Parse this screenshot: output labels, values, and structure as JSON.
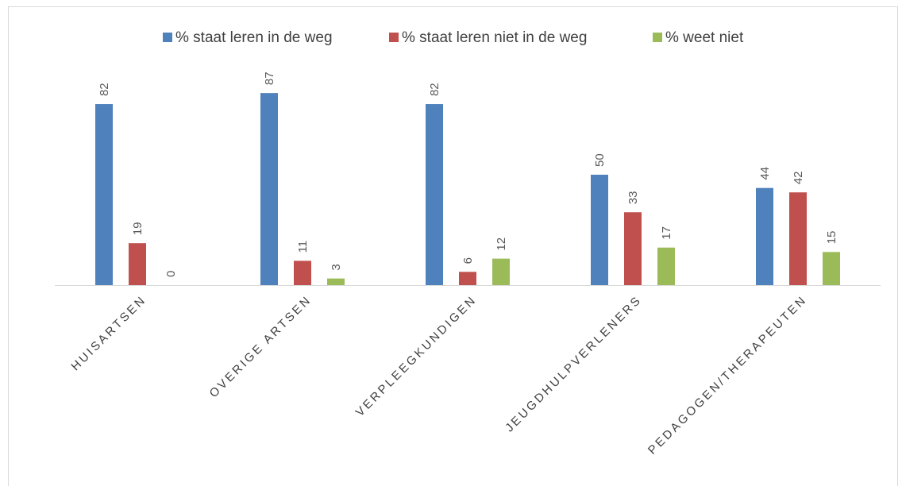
{
  "chart_data": {
    "type": "bar",
    "categories": [
      "HUISARTSEN",
      "OVERIGE ARTSEN",
      "VERPLEEGKUNDIGEN",
      "JEUGDHULPVERLENERS",
      "PEDAGOGEN/THERAPEUTEN"
    ],
    "series": [
      {
        "name": "% staat leren in de weg",
        "color": "#4f81bd",
        "values": [
          82,
          87,
          82,
          50,
          44
        ]
      },
      {
        "name": "% staat leren niet in de weg",
        "color": "#c0504d",
        "values": [
          19,
          11,
          6,
          33,
          42
        ]
      },
      {
        "name": "% weet niet",
        "color": "#9bbb59",
        "values": [
          0,
          3,
          12,
          17,
          15
        ]
      }
    ],
    "ylim": [
      0,
      100
    ],
    "legend": "top"
  }
}
